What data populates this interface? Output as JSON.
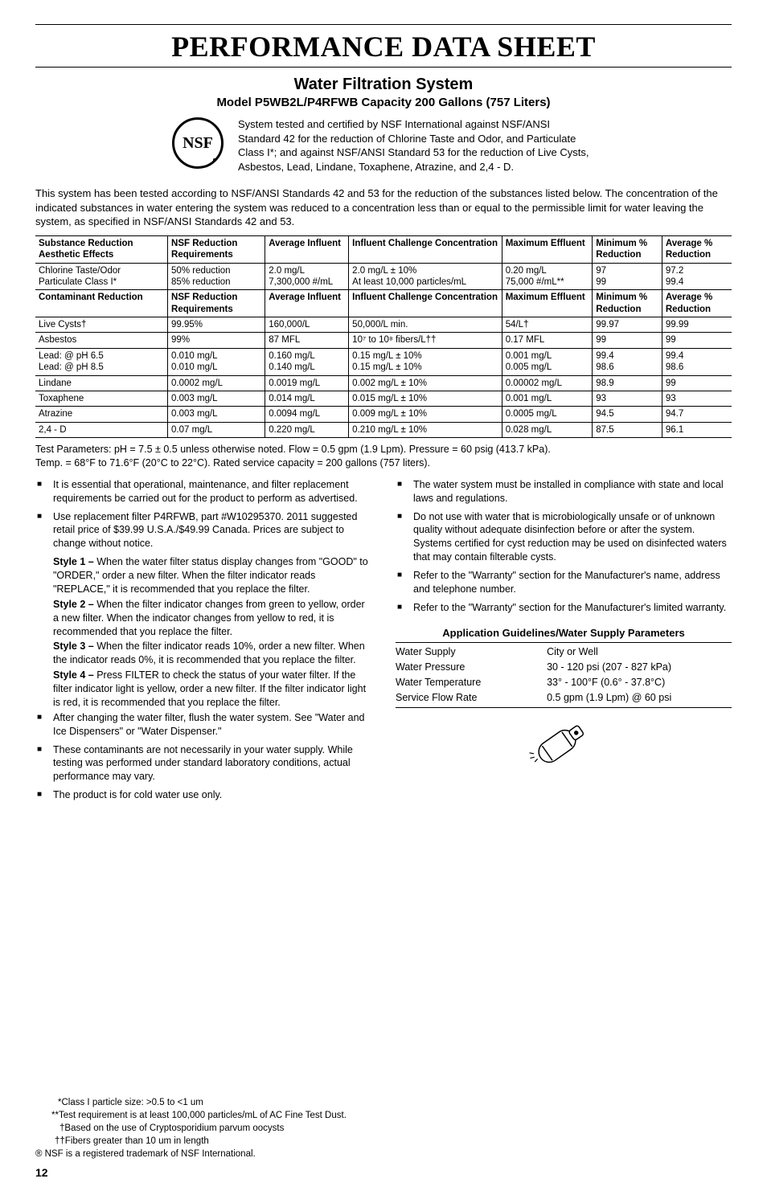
{
  "title": "PERFORMANCE DATA SHEET",
  "subtitle1": "Water Filtration System",
  "subtitle2": "Model P5WB2L/P4RFWB Capacity 200 Gallons (757 Liters)",
  "nsf_label": "NSF",
  "cert_text": "System tested and certified by NSF International against NSF/ANSI Standard 42 for the reduction of Chlorine Taste and Odor, and Particulate Class I*; and against NSF/ANSI Standard 53 for the reduction of Live Cysts, Asbestos, Lead, Lindane, Toxaphene, Atrazine, and 2,4 - D.",
  "intro_text": "This system has been tested according to NSF/ANSI Standards 42 and 53 for the reduction of the substances listed below. The concentration of the indicated substances in water entering the system was reduced to a concentration less than or equal to the permissible limit for water leaving the system, as specified in NSF/ANSI Standards 42 and 53.",
  "table1": {
    "headers": [
      "Substance Reduction Aesthetic Effects",
      "NSF Reduction Requirements",
      "Average Influent",
      "Influent Challenge Concentration",
      "Maximum Effluent",
      "Minimum % Reduction",
      "Average % Reduction"
    ],
    "rows": [
      [
        "Chlorine Taste/Odor\nParticulate Class I*",
        "50% reduction\n85% reduction",
        "2.0 mg/L\n7,300,000 #/mL",
        "2.0 mg/L ± 10%\nAt least 10,000 particles/mL",
        "0.20 mg/L\n75,000 #/mL**",
        "97\n99",
        "97.2\n99.4"
      ]
    ]
  },
  "table2": {
    "headers": [
      "Contaminant Reduction",
      "NSF Reduction Requirements",
      "Average Influent",
      "Influent Challenge Concentration",
      "Maximum Effluent",
      "Minimum % Reduction",
      "Average % Reduction"
    ],
    "rows": [
      [
        "Live Cysts†",
        "99.95%",
        "160,000/L",
        "50,000/L min.",
        "54/L†",
        "99.97",
        "99.99"
      ],
      [
        "Asbestos",
        "99%",
        "87 MFL",
        "10⁷ to 10⁸ fibers/L††",
        "0.17 MFL",
        "99",
        "99"
      ],
      [
        "Lead: @ pH 6.5\nLead: @ pH 8.5",
        "0.010 mg/L\n0.010 mg/L",
        "0.160 mg/L\n0.140 mg/L",
        "0.15 mg/L ± 10%\n0.15 mg/L ± 10%",
        "0.001 mg/L\n0.005 mg/L",
        "99.4\n98.6",
        "99.4\n98.6"
      ],
      [
        "Lindane",
        "0.0002 mg/L",
        "0.0019 mg/L",
        "0.002 mg/L ± 10%",
        "0.00002 mg/L",
        "98.9",
        "99"
      ],
      [
        "Toxaphene",
        "0.003 mg/L",
        "0.014 mg/L",
        "0.015 mg/L ± 10%",
        "0.001 mg/L",
        "93",
        "93"
      ],
      [
        "Atrazine",
        "0.003 mg/L",
        "0.0094 mg/L",
        "0.009 mg/L ± 10%",
        "0.0005 mg/L",
        "94.5",
        "94.7"
      ],
      [
        "2,4 - D",
        "0.07 mg/L",
        "0.220 mg/L",
        "0.210 mg/L ± 10%",
        "0.028 mg/L",
        "87.5",
        "96.1"
      ]
    ]
  },
  "test_params_1": "Test Parameters: pH = 7.5 ± 0.5 unless otherwise noted. Flow = 0.5 gpm (1.9 Lpm). Pressure = 60 psig (413.7 kPa).",
  "test_params_2": "Temp. = 68°F to 71.6°F (20°C to 22°C). Rated service capacity = 200 gallons (757 liters).",
  "left_bullets": [
    "It is essential that operational, maintenance, and filter replacement requirements be carried out for the product to perform as advertised.",
    "Use replacement filter P4RFWB, part #W10295370. 2011 suggested retail price of $39.99 U.S.A./$49.99 Canada. Prices are subject to change without notice."
  ],
  "styles": [
    {
      "label": "Style 1 –",
      "text": "When the water filter status display changes from \"GOOD\" to \"ORDER,\" order a new filter. When the filter indicator reads \"REPLACE,\" it is recommended that you replace the filter."
    },
    {
      "label": "Style 2 –",
      "text": "When the filter indicator changes from green to yellow, order a new filter. When the indicator changes from yellow to red, it is recommended that you replace the filter."
    },
    {
      "label": "Style 3 –",
      "text": "When the filter indicator reads 10%, order a new filter. When the indicator reads 0%, it is recommended that you replace the filter."
    },
    {
      "label": "Style 4 –",
      "text": "Press FILTER to check the status of your water filter. If the filter indicator light is yellow, order a new filter. If the filter indicator light is red, it is recommended that you replace the filter."
    }
  ],
  "left_bullets_2": [
    "After changing the water filter, flush the water system. See \"Water and Ice Dispensers\" or \"Water Dispenser.\"",
    "These contaminants are not necessarily in your water supply. While testing was performed under standard laboratory conditions, actual performance may vary.",
    "The product is for cold water use only."
  ],
  "right_bullets": [
    "The water system must be installed in compliance with state and local laws and regulations.",
    "Do not use with water that is microbiologically unsafe or of unknown quality without adequate disinfection before or after the system. Systems certified for cyst reduction may be used on disinfected waters that may contain filterable cysts.",
    "Refer to the \"Warranty\" section for the Manufacturer's name, address and telephone number.",
    "Refer to the \"Warranty\" section for the Manufacturer's limited warranty."
  ],
  "app_title": "Application Guidelines/Water Supply Parameters",
  "app_rows": [
    [
      "Water Supply",
      "City or Well"
    ],
    [
      "Water Pressure",
      "30 - 120 psi (207 - 827 kPa)"
    ],
    [
      "Water Temperature",
      "33° - 100°F (0.6° - 37.8°C)"
    ],
    [
      "Service Flow Rate",
      "0.5 gpm (1.9 Lpm) @ 60 psi"
    ]
  ],
  "footnotes": [
    "*Class I particle size: >0.5 to <1 um",
    "**Test requirement is at least 100,000 particles/mL of AC Fine Test Dust.",
    "†Based on the use of Cryptosporidium parvum oocysts",
    "††Fibers greater than 10 um in length"
  ],
  "trademark_note": "® NSF is a registered trademark of NSF International.",
  "page_num": "12",
  "col_widths": [
    "19%",
    "14%",
    "12%",
    "22%",
    "13%",
    "10%",
    "10%"
  ]
}
